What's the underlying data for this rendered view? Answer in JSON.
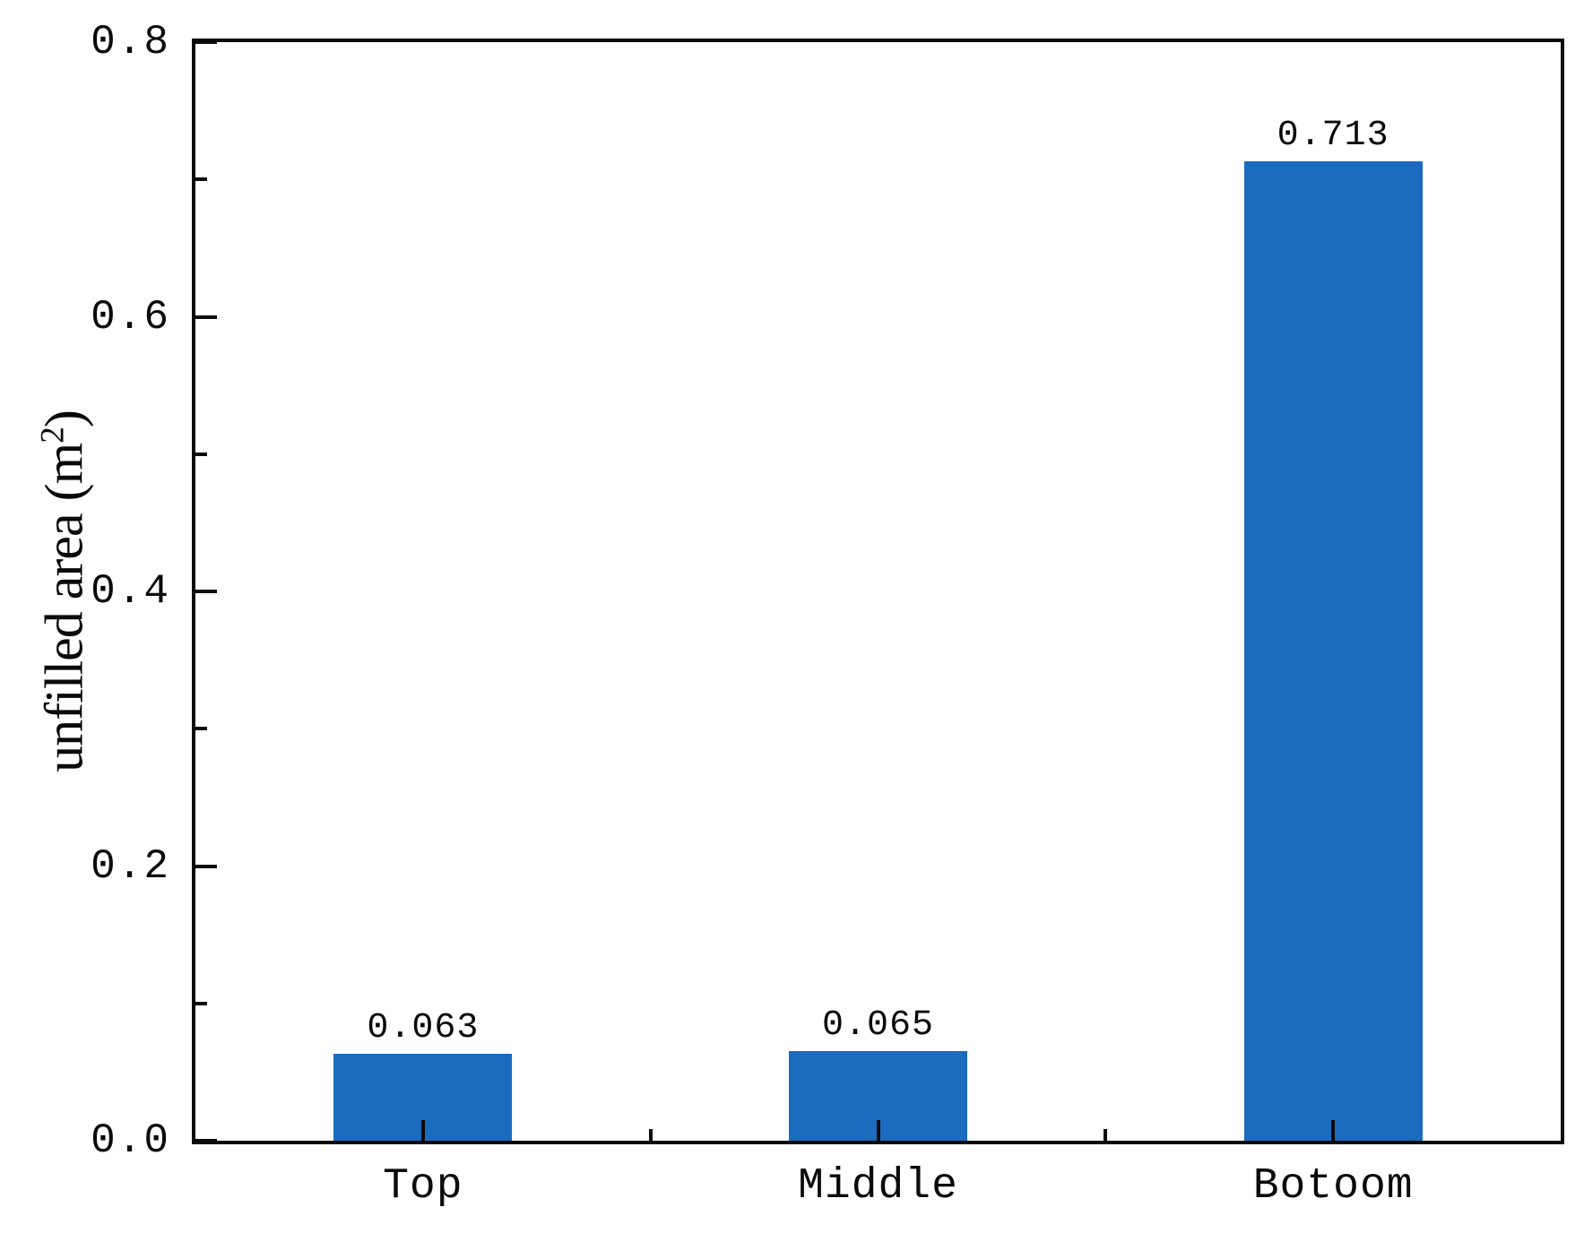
{
  "chart_data": {
    "type": "bar",
    "categories": [
      "Top",
      "Middle",
      "Botoom"
    ],
    "values": [
      0.063,
      0.065,
      0.713
    ],
    "value_labels": [
      "0.063",
      "0.065",
      "0.713"
    ],
    "ylabel": "unfilled area (m²)",
    "ylabel_pre": "unfilled area (m",
    "ylabel_sup": "2",
    "ylabel_post": ")",
    "ylim": [
      0.0,
      0.8
    ],
    "yticks": [
      {
        "label": "0.0",
        "value": 0.0
      },
      {
        "label": "0.2",
        "value": 0.2
      },
      {
        "label": "0.4",
        "value": 0.4
      },
      {
        "label": "0.6",
        "value": 0.6
      },
      {
        "label": "0.8",
        "value": 0.8
      }
    ],
    "y_minor_tick_step": 0.1,
    "bar_color": "#1B6CBE",
    "axis_color": "#0A0A0A",
    "text_color": "#0A0A0A",
    "background_color": "#FFFFFF",
    "grid": false,
    "legend": false,
    "tick_direction": "in",
    "plot_frame": "full-box"
  }
}
